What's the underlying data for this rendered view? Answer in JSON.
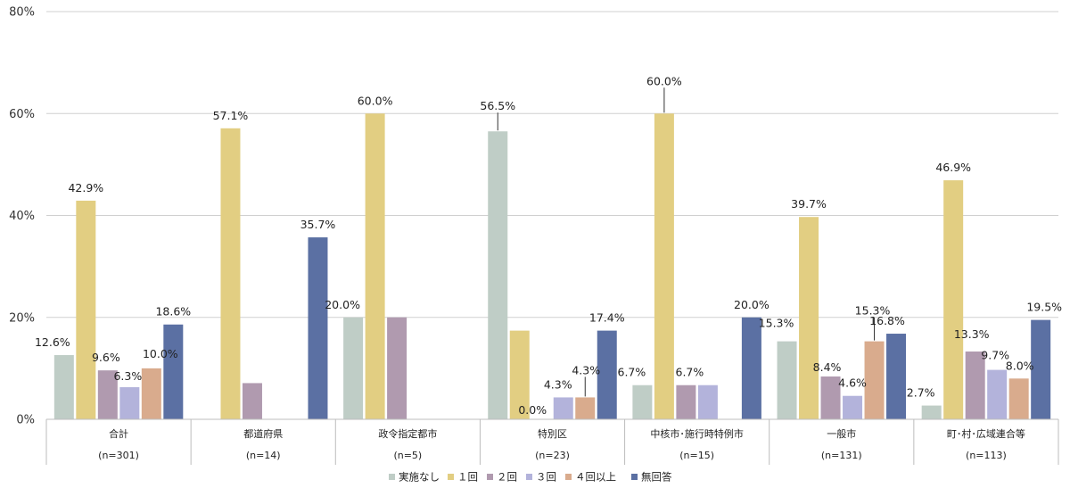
{
  "chart_data": {
    "type": "bar",
    "title": "",
    "xlabel": "",
    "ylabel": "",
    "ylim": [
      0,
      80
    ],
    "yticks": [
      "0%",
      "20%",
      "40%",
      "60%",
      "80%"
    ],
    "grid": true,
    "legend_position": "bottom",
    "categories": [
      "合計",
      "都道府県",
      "政令指定都市",
      "特別区",
      "中核市･施行時特例市",
      "一般市",
      "町･村･広域連合等"
    ],
    "category_n": [
      "(n=301)",
      "(n=14)",
      "(n=5)",
      "(n=23)",
      "(n=15)",
      "(n=131)",
      "(n=113)"
    ],
    "series": [
      {
        "name": "実施なし",
        "color": "#bfcdc6",
        "values": [
          12.6,
          null,
          20.0,
          56.5,
          6.7,
          15.3,
          2.7
        ],
        "labels": [
          "12.6%",
          "",
          "20.0%",
          "56.5%",
          "6.7%",
          "15.3%",
          "2.7%"
        ]
      },
      {
        "name": "１回",
        "color": "#e2ce82",
        "values": [
          42.9,
          57.1,
          60.0,
          17.4,
          60.0,
          39.7,
          46.9
        ],
        "labels": [
          "42.9%",
          "57.1%",
          "60.0%",
          "",
          "60.0%",
          "39.7%",
          "46.9%"
        ]
      },
      {
        "name": "２回",
        "color": "#b09aaf",
        "values": [
          9.6,
          7.1,
          20.0,
          0.0,
          6.7,
          8.4,
          13.3
        ],
        "labels": [
          "9.6%",
          "",
          "",
          "0.0%",
          "6.7%",
          "8.4%",
          "13.3%"
        ]
      },
      {
        "name": "３回",
        "color": "#b3b3db",
        "values": [
          6.3,
          null,
          null,
          4.3,
          6.7,
          4.6,
          9.7
        ],
        "labels": [
          "6.3%",
          "",
          "",
          "4.3%",
          "",
          "4.6%",
          "9.7%"
        ]
      },
      {
        "name": "４回以上",
        "color": "#d9ab8d",
        "values": [
          10.0,
          null,
          null,
          4.3,
          null,
          15.3,
          8.0
        ],
        "labels": [
          "10.0%",
          "",
          "",
          "4.3%",
          "",
          "15.3%",
          "8.0%"
        ]
      },
      {
        "name": "無回答",
        "color": "#5b70a3",
        "values": [
          18.6,
          35.7,
          null,
          17.4,
          20.0,
          16.8,
          19.5
        ],
        "labels": [
          "18.6%",
          "35.7%",
          "",
          "17.4%",
          "20.0%",
          "16.8%",
          "19.5%"
        ]
      }
    ]
  }
}
